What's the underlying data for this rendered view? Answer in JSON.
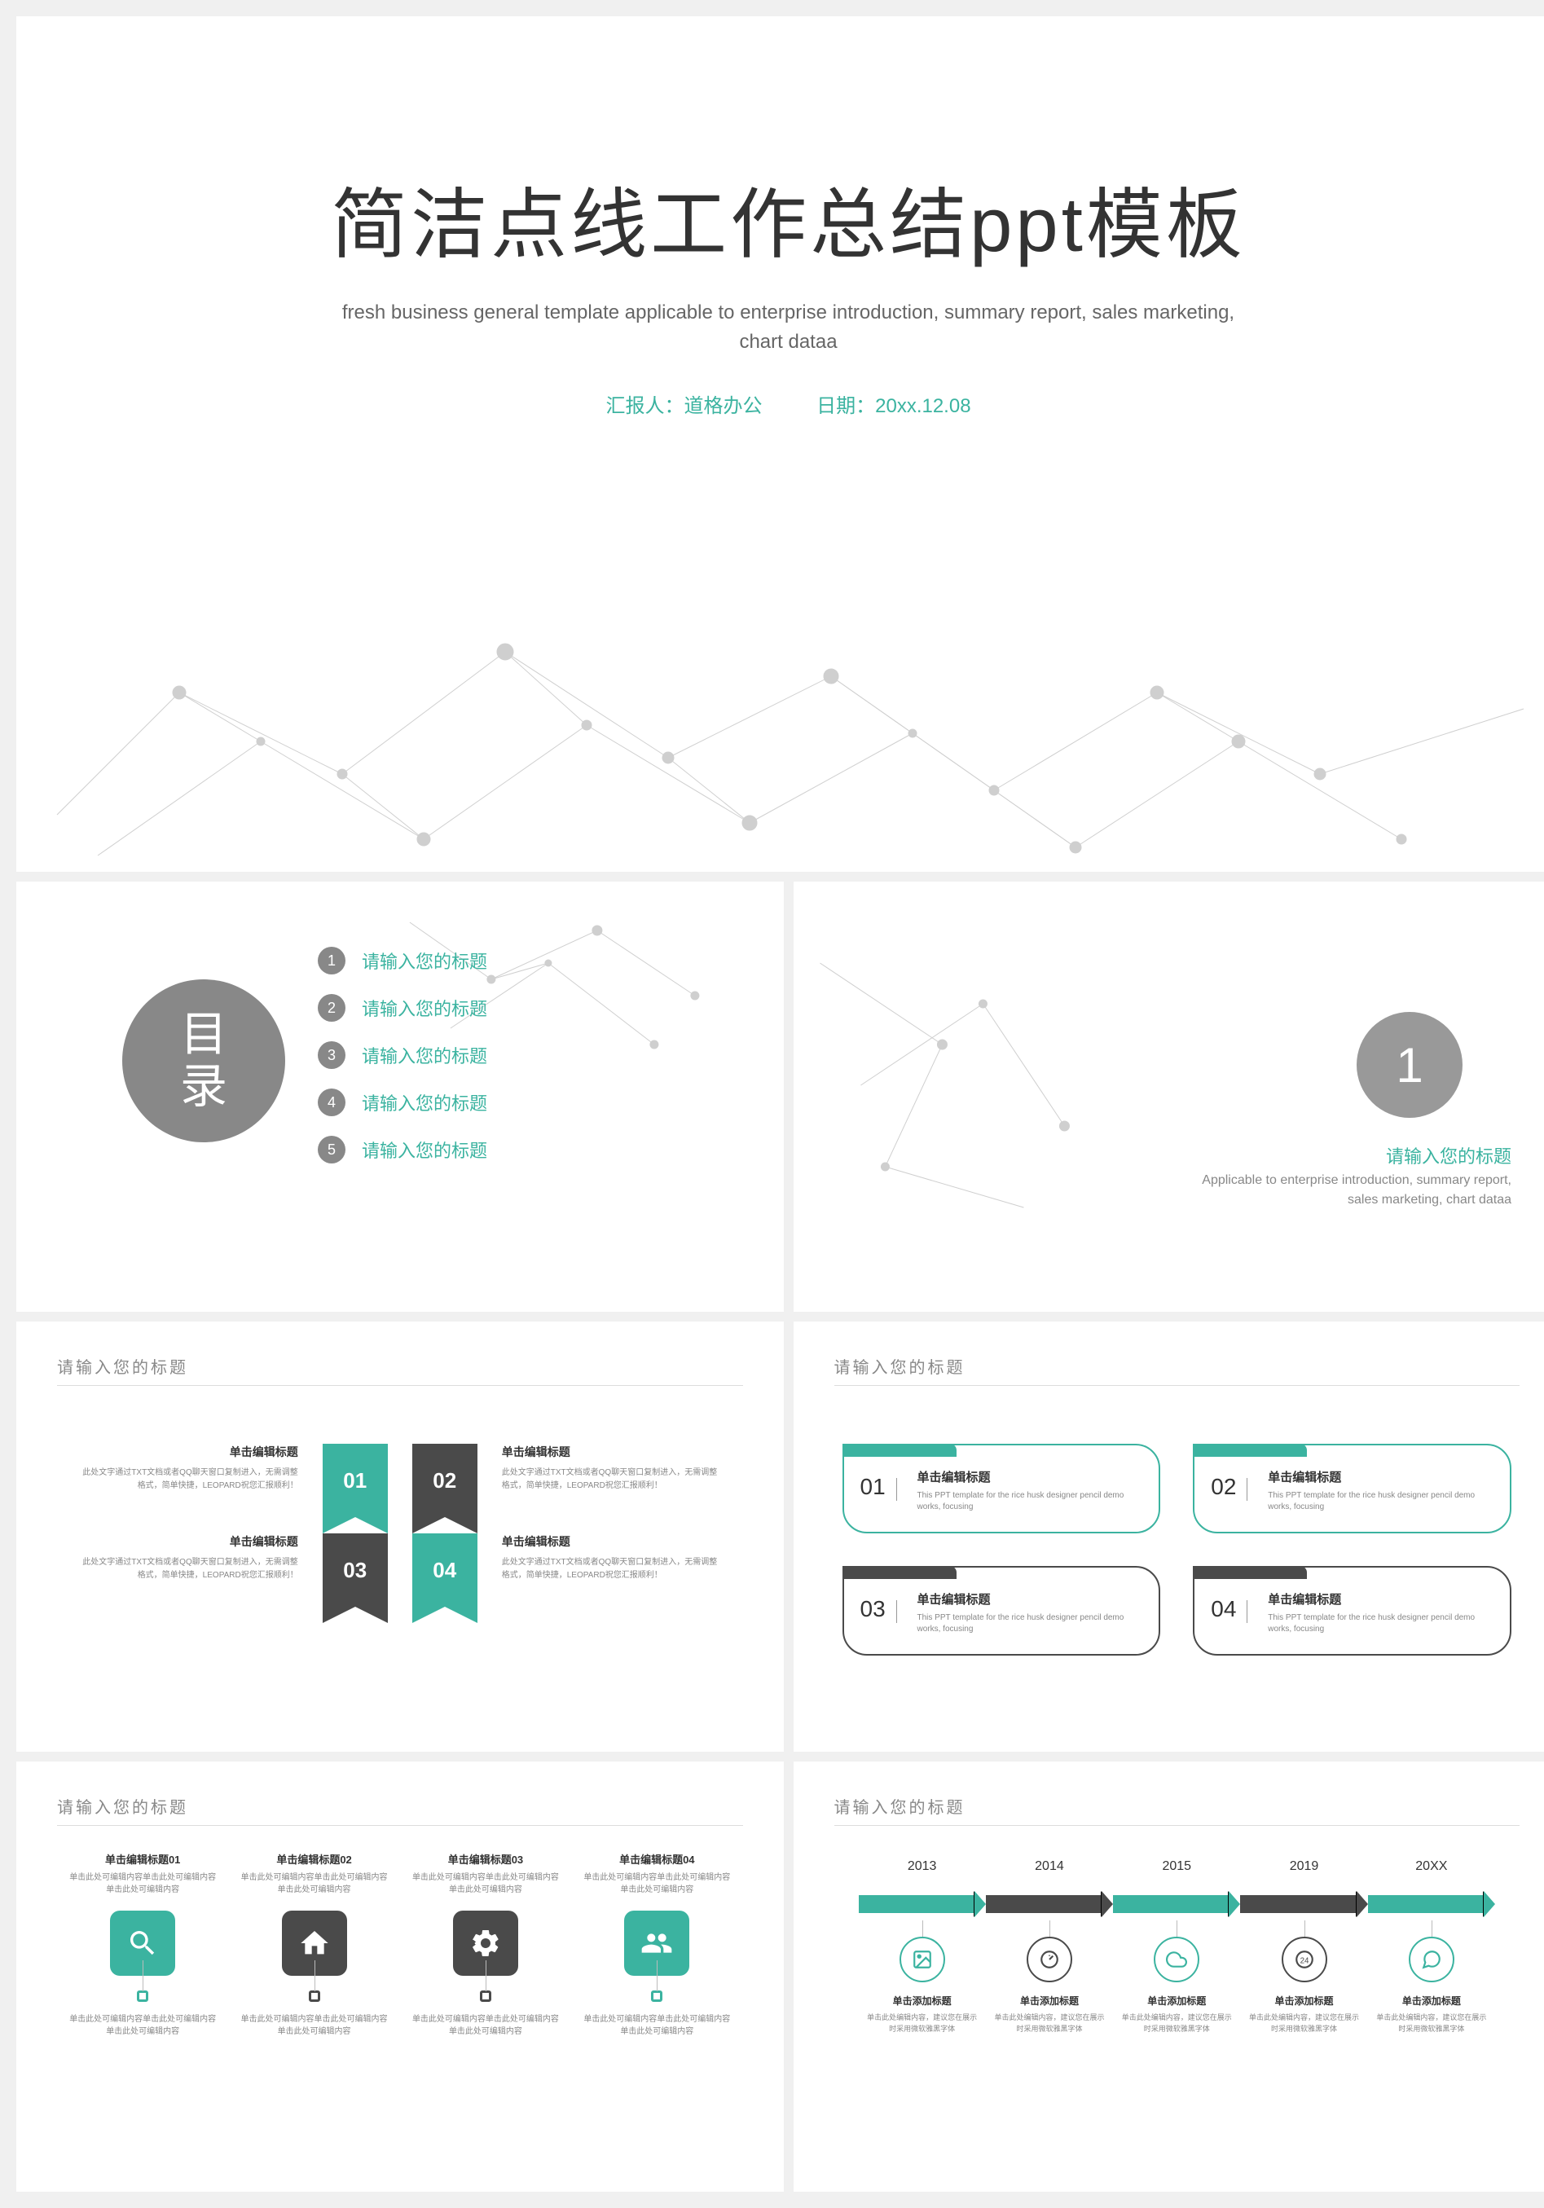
{
  "colors": {
    "teal": "#3bb3a0",
    "dark": "#4a4a4a",
    "gray": "#888888",
    "lightgray": "#bbbbbb"
  },
  "slide1": {
    "title": "简洁点线工作总结ppt模板",
    "subtitle": "fresh business general template applicable to enterprise introduction, summary report,  sales marketing, chart dataa",
    "reporter_label": "汇报人：道格办公",
    "date_label": "日期：20xx.12.08"
  },
  "slide2": {
    "toc_label_1": "目",
    "toc_label_2": "录",
    "items": [
      {
        "num": "1",
        "text": "请输入您的标题"
      },
      {
        "num": "2",
        "text": "请输入您的标题"
      },
      {
        "num": "3",
        "text": "请输入您的标题"
      },
      {
        "num": "4",
        "text": "请输入您的标题"
      },
      {
        "num": "5",
        "text": "请输入您的标题"
      }
    ]
  },
  "slide3": {
    "num": "1",
    "title": "请输入您的标题",
    "desc": "Applicable to enterprise introduction, summary report,  sales marketing, chart dataa"
  },
  "slide4": {
    "header": "请输入您的标题",
    "items": [
      {
        "num": "01",
        "color": "teal",
        "title": "单击编辑标题",
        "desc": "此处文字通过TXT文档或者QQ聊天窗口复制进入，无需调整格式，简单快捷，LEOPARD祝您汇报顺利！"
      },
      {
        "num": "02",
        "color": "dark",
        "title": "单击编辑标题",
        "desc": "此处文字通过TXT文档或者QQ聊天窗口复制进入，无需调整格式，简单快捷，LEOPARD祝您汇报顺利！"
      },
      {
        "num": "03",
        "color": "dark",
        "title": "单击编辑标题",
        "desc": "此处文字通过TXT文档或者QQ聊天窗口复制进入，无需调整格式，简单快捷，LEOPARD祝您汇报顺利！"
      },
      {
        "num": "04",
        "color": "teal",
        "title": "单击编辑标题",
        "desc": "此处文字通过TXT文档或者QQ聊天窗口复制进入，无需调整格式，简单快捷，LEOPARD祝您汇报顺利！"
      }
    ]
  },
  "slide5": {
    "header": "请输入您的标题",
    "items": [
      {
        "num": "01",
        "color": "teal",
        "title": "单击编辑标题",
        "desc": "This PPT template for the rice husk designer pencil demo works, focusing"
      },
      {
        "num": "02",
        "color": "teal",
        "title": "单击编辑标题",
        "desc": "This PPT template for the rice husk designer pencil demo works, focusing"
      },
      {
        "num": "03",
        "color": "dark",
        "title": "单击编辑标题",
        "desc": "This PPT template for the rice husk designer pencil demo works, focusing"
      },
      {
        "num": "04",
        "color": "dark",
        "title": "单击编辑标题",
        "desc": "This PPT template for the rice husk designer pencil demo works, focusing"
      }
    ]
  },
  "slide6": {
    "header": "请输入您的标题",
    "items": [
      {
        "color": "teal",
        "icon": "search",
        "top_title": "单击编辑标题01",
        "top_desc": "单击此处可编辑内容单击此处可编辑内容单击此处可编辑内容",
        "bot_desc": "单击此处可编辑内容单击此处可编辑内容单击此处可编辑内容"
      },
      {
        "color": "dark",
        "icon": "home",
        "top_title": "单击编辑标题02",
        "top_desc": "单击此处可编辑内容单击此处可编辑内容单击此处可编辑内容",
        "bot_desc": "单击此处可编辑内容单击此处可编辑内容单击此处可编辑内容"
      },
      {
        "color": "dark",
        "icon": "gear",
        "top_title": "单击编辑标题03",
        "top_desc": "单击此处可编辑内容单击此处可编辑内容单击此处可编辑内容",
        "bot_desc": "单击此处可编辑内容单击此处可编辑内容单击此处可编辑内容"
      },
      {
        "color": "teal",
        "icon": "users",
        "top_title": "单击编辑标题04",
        "top_desc": "单击此处可编辑内容单击此处可编辑内容单击此处可编辑内容",
        "bot_desc": "单击此处可编辑内容单击此处可编辑内容单击此处可编辑内容"
      }
    ]
  },
  "slide7": {
    "header": "请输入您的标题",
    "years": [
      "2013",
      "2014",
      "2015",
      "2019",
      "20XX"
    ],
    "arrow_colors": [
      "teal",
      "dark",
      "teal",
      "dark",
      "teal"
    ],
    "items": [
      {
        "color": "teal",
        "icon": "image",
        "title": "单击添加标题",
        "desc": "单击此处编辑内容，建议您在展示时采用微软雅黑字体"
      },
      {
        "color": "dark",
        "icon": "dashboard",
        "title": "单击添加标题",
        "desc": "单击此处编辑内容，建议您在展示时采用微软雅黑字体"
      },
      {
        "color": "teal",
        "icon": "cloud",
        "title": "单击添加标题",
        "desc": "单击此处编辑内容，建议您在展示时采用微软雅黑字体"
      },
      {
        "color": "dark",
        "icon": "clock",
        "title": "单击添加标题",
        "desc": "单击此处编辑内容，建议您在展示时采用微软雅黑字体"
      },
      {
        "color": "teal",
        "icon": "chat",
        "title": "单击添加标题",
        "desc": "单击此处编辑内容，建议您在展示时采用微软雅黑字体"
      }
    ]
  }
}
